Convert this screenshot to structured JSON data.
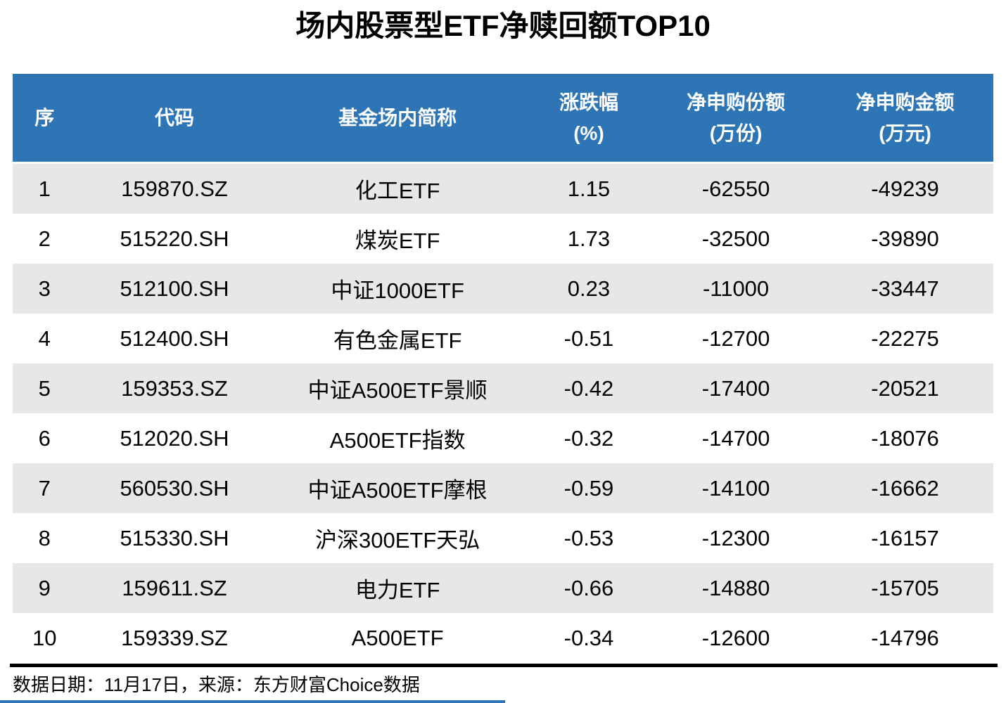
{
  "title": "场内股票型ETF净赎回额TOP10",
  "colors": {
    "header_bg": "#2E75B6",
    "header_text": "#FFFFFF",
    "stripe_bg": "#E7E7E7",
    "rule_black": "#000000",
    "accent_line": "#2E75B6"
  },
  "table": {
    "columns": [
      {
        "key": "seq",
        "label": "序",
        "unit": ""
      },
      {
        "key": "code",
        "label": "代码",
        "unit": ""
      },
      {
        "key": "name",
        "label": "基金场内简称",
        "unit": ""
      },
      {
        "key": "change-pct",
        "label": "涨跌幅",
        "unit": "(%)"
      },
      {
        "key": "net-shares",
        "label": "净申购份额",
        "unit": "(万份)"
      },
      {
        "key": "net-amount",
        "label": "净申购金额",
        "unit": "(万元)"
      }
    ]
  },
  "footer": {
    "note": "数据日期：11月17日，来源：东方财富Choice数据"
  },
  "chart_data": {
    "type": "table",
    "title": "场内股票型ETF净赎回额TOP10",
    "columns": [
      "序",
      "代码",
      "基金场内简称",
      "涨跌幅(%)",
      "净申购份额(万份)",
      "净申购金额(万元)"
    ],
    "rows": [
      [
        1,
        "159870.SZ",
        "化工ETF",
        1.15,
        -62550,
        -49239
      ],
      [
        2,
        "515220.SH",
        "煤炭ETF",
        1.73,
        -32500,
        -39890
      ],
      [
        3,
        "512100.SH",
        "中证1000ETF",
        0.23,
        -11000,
        -33447
      ],
      [
        4,
        "512400.SH",
        "有色金属ETF",
        -0.51,
        -12700,
        -22275
      ],
      [
        5,
        "159353.SZ",
        "中证A500ETF景顺",
        -0.42,
        -17400,
        -20521
      ],
      [
        6,
        "512020.SH",
        "A500ETF指数",
        -0.32,
        -14700,
        -18076
      ],
      [
        7,
        "560530.SH",
        "中证A500ETF摩根",
        -0.59,
        -14100,
        -16662
      ],
      [
        8,
        "515330.SH",
        "沪深300ETF天弘",
        -0.53,
        -12300,
        -16157
      ],
      [
        9,
        "159611.SZ",
        "电力ETF",
        -0.66,
        -14880,
        -15705
      ],
      [
        10,
        "159339.SZ",
        "A500ETF",
        -0.34,
        -12600,
        -14796
      ]
    ],
    "source_note": "数据日期：11月17日，来源：东方财富Choice数据"
  }
}
